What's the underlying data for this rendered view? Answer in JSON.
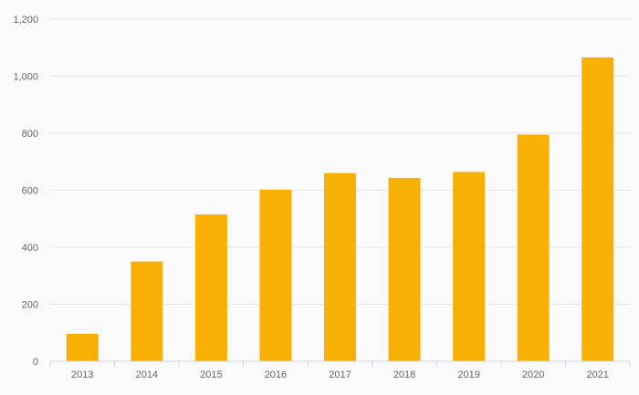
{
  "chart_data": {
    "type": "bar",
    "title": "",
    "xlabel": "",
    "ylabel": "",
    "categories": [
      "2013",
      "2014",
      "2015",
      "2016",
      "2017",
      "2018",
      "2019",
      "2020",
      "2021"
    ],
    "values": [
      96,
      350,
      515,
      602,
      660,
      643,
      664,
      795,
      1066
    ],
    "ylim": [
      0,
      1200
    ],
    "y_ticks": [
      {
        "value": 0,
        "label": "0"
      },
      {
        "value": 200,
        "label": "200"
      },
      {
        "value": 400,
        "label": "400"
      },
      {
        "value": 600,
        "label": "600"
      },
      {
        "value": 800,
        "label": "800"
      },
      {
        "value": 1000,
        "label": "1,000"
      },
      {
        "value": 1200,
        "label": "1,200"
      }
    ],
    "grid": true,
    "legend": false,
    "colors": {
      "bar": "#f9b005",
      "background": "#fafafa",
      "gridline": "#e6e6e6",
      "axis_line": "#ccd6eb",
      "label": "#666666"
    }
  }
}
